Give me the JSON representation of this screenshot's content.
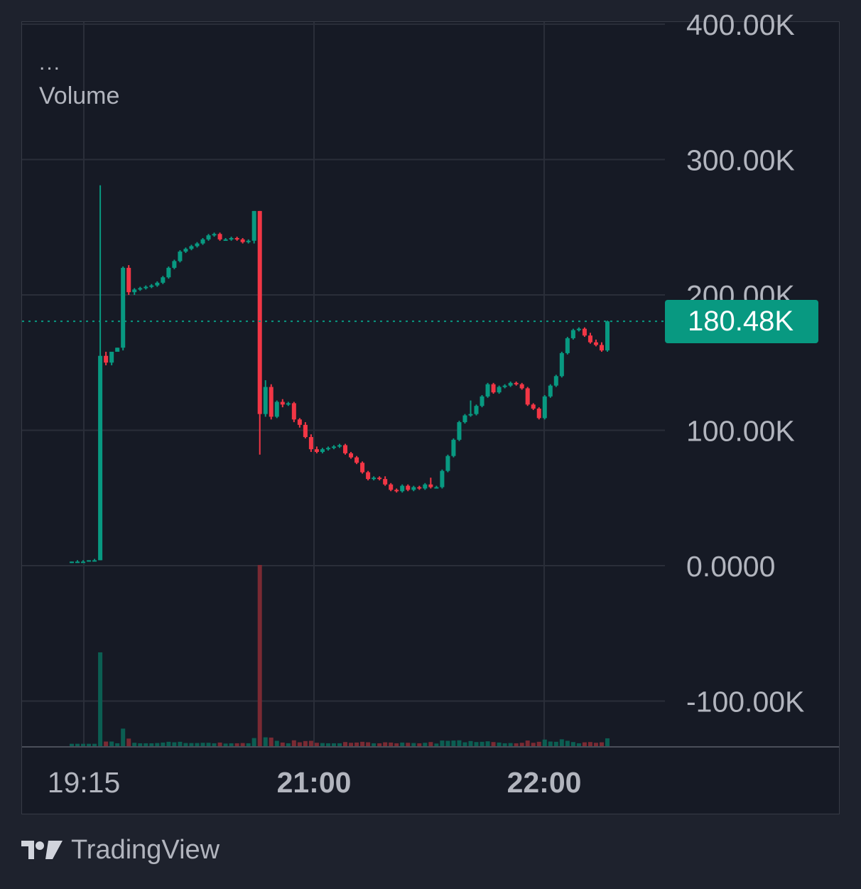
{
  "legend": {
    "more": "...",
    "indicator": "Volume"
  },
  "price_tag": {
    "label": "180.48K",
    "color": "#089981"
  },
  "brand": {
    "name": "TradingView",
    "icon": "tradingview-logo-icon"
  },
  "colors": {
    "up": "#089981",
    "down": "#f23645",
    "up_volume": "#0b5e52",
    "down_volume": "#7a2a33",
    "grid": "#2a2e39",
    "text": "#b2b5be"
  },
  "chart_data": {
    "type": "candlestick",
    "yaxis": {
      "ticks": [
        "400.00K",
        "300.00K",
        "200.00K",
        "100.00K",
        "0.0000",
        "-100.00K"
      ],
      "tick_values": [
        400000,
        300000,
        200000,
        100000,
        0,
        -100000
      ]
    },
    "xaxis": {
      "ticks": [
        {
          "label": "19:15",
          "bold": false
        },
        {
          "label": "21:00",
          "bold": true
        },
        {
          "label": "22:00",
          "bold": true
        }
      ]
    },
    "last_price": 180480,
    "candles": [
      {
        "o": 2,
        "h": 3,
        "c": 3,
        "l": 2
      },
      {
        "o": 3,
        "h": 4,
        "c": 3,
        "l": 3
      },
      {
        "o": 3,
        "h": 4,
        "c": 3,
        "l": 3
      },
      {
        "o": 3,
        "h": 4,
        "c": 4,
        "l": 3
      },
      {
        "o": 4,
        "h": 5,
        "c": 4,
        "l": 4
      },
      {
        "o": 4,
        "h": 281,
        "c": 155,
        "l": 4
      },
      {
        "o": 155,
        "h": 158,
        "c": 150,
        "l": 148
      },
      {
        "o": 150,
        "h": 158,
        "c": 158,
        "l": 148
      },
      {
        "o": 158,
        "h": 161,
        "c": 161,
        "l": 158
      },
      {
        "o": 161,
        "h": 221,
        "c": 220,
        "l": 159
      },
      {
        "o": 220,
        "h": 222,
        "c": 202,
        "l": 200
      },
      {
        "o": 202,
        "h": 205,
        "c": 204,
        "l": 200
      },
      {
        "o": 204,
        "h": 206,
        "c": 205,
        "l": 203
      },
      {
        "o": 205,
        "h": 207,
        "c": 206,
        "l": 204
      },
      {
        "o": 206,
        "h": 208,
        "c": 207,
        "l": 205
      },
      {
        "o": 207,
        "h": 210,
        "c": 209,
        "l": 206
      },
      {
        "o": 209,
        "h": 214,
        "c": 213,
        "l": 208
      },
      {
        "o": 213,
        "h": 221,
        "c": 220,
        "l": 212
      },
      {
        "o": 220,
        "h": 226,
        "c": 225,
        "l": 219
      },
      {
        "o": 225,
        "h": 233,
        "c": 232,
        "l": 224
      },
      {
        "o": 232,
        "h": 235,
        "c": 234,
        "l": 231
      },
      {
        "o": 234,
        "h": 237,
        "c": 236,
        "l": 233
      },
      {
        "o": 236,
        "h": 239,
        "c": 238,
        "l": 235
      },
      {
        "o": 238,
        "h": 242,
        "c": 241,
        "l": 237
      },
      {
        "o": 241,
        "h": 245,
        "c": 244,
        "l": 240
      },
      {
        "o": 244,
        "h": 246,
        "c": 245,
        "l": 243
      },
      {
        "o": 245,
        "h": 246,
        "c": 241,
        "l": 240
      },
      {
        "o": 241,
        "h": 242,
        "c": 241,
        "l": 240
      },
      {
        "o": 241,
        "h": 243,
        "c": 242,
        "l": 240
      },
      {
        "o": 242,
        "h": 243,
        "c": 241,
        "l": 240
      },
      {
        "o": 241,
        "h": 242,
        "c": 239,
        "l": 238
      },
      {
        "o": 239,
        "h": 241,
        "c": 240,
        "l": 238
      },
      {
        "o": 240,
        "h": 262,
        "c": 262,
        "l": 238
      },
      {
        "o": 262,
        "h": 262,
        "c": 112,
        "l": 82
      },
      {
        "o": 112,
        "h": 137,
        "c": 132,
        "l": 110
      },
      {
        "o": 132,
        "h": 134,
        "c": 110,
        "l": 108
      },
      {
        "o": 110,
        "h": 122,
        "c": 121,
        "l": 109
      },
      {
        "o": 121,
        "h": 123,
        "c": 119,
        "l": 117
      },
      {
        "o": 119,
        "h": 121,
        "c": 120,
        "l": 118
      },
      {
        "o": 120,
        "h": 121,
        "c": 108,
        "l": 106
      },
      {
        "o": 108,
        "h": 109,
        "c": 104,
        "l": 102
      },
      {
        "o": 104,
        "h": 106,
        "c": 95,
        "l": 94
      },
      {
        "o": 95,
        "h": 97,
        "c": 86,
        "l": 84
      },
      {
        "o": 86,
        "h": 88,
        "c": 84,
        "l": 83
      },
      {
        "o": 84,
        "h": 87,
        "c": 86,
        "l": 83
      },
      {
        "o": 86,
        "h": 88,
        "c": 87,
        "l": 85
      },
      {
        "o": 87,
        "h": 89,
        "c": 88,
        "l": 86
      },
      {
        "o": 88,
        "h": 90,
        "c": 89,
        "l": 87
      },
      {
        "o": 89,
        "h": 90,
        "c": 83,
        "l": 82
      },
      {
        "o": 83,
        "h": 84,
        "c": 80,
        "l": 79
      },
      {
        "o": 80,
        "h": 81,
        "c": 76,
        "l": 75
      },
      {
        "o": 76,
        "h": 77,
        "c": 69,
        "l": 68
      },
      {
        "o": 69,
        "h": 70,
        "c": 64,
        "l": 63
      },
      {
        "o": 64,
        "h": 66,
        "c": 65,
        "l": 63
      },
      {
        "o": 65,
        "h": 66,
        "c": 64,
        "l": 63
      },
      {
        "o": 64,
        "h": 66,
        "c": 60,
        "l": 59
      },
      {
        "o": 60,
        "h": 61,
        "c": 56,
        "l": 55
      },
      {
        "o": 56,
        "h": 57,
        "c": 55,
        "l": 54
      },
      {
        "o": 55,
        "h": 60,
        "c": 59,
        "l": 54
      },
      {
        "o": 59,
        "h": 60,
        "c": 56,
        "l": 55
      },
      {
        "o": 56,
        "h": 59,
        "c": 58,
        "l": 55
      },
      {
        "o": 58,
        "h": 59,
        "c": 57,
        "l": 56
      },
      {
        "o": 57,
        "h": 61,
        "c": 60,
        "l": 56
      },
      {
        "o": 60,
        "h": 65,
        "c": 58,
        "l": 57
      },
      {
        "o": 58,
        "h": 59,
        "c": 58,
        "l": 57
      },
      {
        "o": 58,
        "h": 71,
        "c": 70,
        "l": 57
      },
      {
        "o": 70,
        "h": 82,
        "c": 81,
        "l": 69
      },
      {
        "o": 81,
        "h": 94,
        "c": 93,
        "l": 80
      },
      {
        "o": 93,
        "h": 107,
        "c": 106,
        "l": 92
      },
      {
        "o": 106,
        "h": 112,
        "c": 111,
        "l": 105
      },
      {
        "o": 111,
        "h": 122,
        "c": 112,
        "l": 110
      },
      {
        "o": 112,
        "h": 119,
        "c": 118,
        "l": 111
      },
      {
        "o": 118,
        "h": 126,
        "c": 125,
        "l": 117
      },
      {
        "o": 125,
        "h": 135,
        "c": 134,
        "l": 124
      },
      {
        "o": 134,
        "h": 135,
        "c": 128,
        "l": 127
      },
      {
        "o": 128,
        "h": 133,
        "c": 132,
        "l": 127
      },
      {
        "o": 132,
        "h": 134,
        "c": 133,
        "l": 131
      },
      {
        "o": 133,
        "h": 136,
        "c": 135,
        "l": 132
      },
      {
        "o": 135,
        "h": 136,
        "c": 134,
        "l": 133
      },
      {
        "o": 134,
        "h": 135,
        "c": 131,
        "l": 130
      },
      {
        "o": 131,
        "h": 132,
        "c": 119,
        "l": 118
      },
      {
        "o": 119,
        "h": 120,
        "c": 116,
        "l": 115
      },
      {
        "o": 116,
        "h": 117,
        "c": 109,
        "l": 108
      },
      {
        "o": 109,
        "h": 126,
        "c": 125,
        "l": 108
      },
      {
        "o": 125,
        "h": 134,
        "c": 133,
        "l": 124
      },
      {
        "o": 133,
        "h": 141,
        "c": 140,
        "l": 132
      },
      {
        "o": 140,
        "h": 158,
        "c": 157,
        "l": 139
      },
      {
        "o": 157,
        "h": 169,
        "c": 168,
        "l": 156
      },
      {
        "o": 168,
        "h": 175,
        "c": 174,
        "l": 167
      },
      {
        "o": 174,
        "h": 176,
        "c": 175,
        "l": 173
      },
      {
        "o": 175,
        "h": 176,
        "c": 170,
        "l": 169
      },
      {
        "o": 170,
        "h": 172,
        "c": 165,
        "l": 164
      },
      {
        "o": 165,
        "h": 167,
        "c": 163,
        "l": 162
      },
      {
        "o": 163,
        "h": 165,
        "c": 159,
        "l": 158
      },
      {
        "o": 159,
        "h": 181,
        "c": 180.48,
        "l": 158
      }
    ],
    "volume_scale_max_candle_index": 33
  }
}
